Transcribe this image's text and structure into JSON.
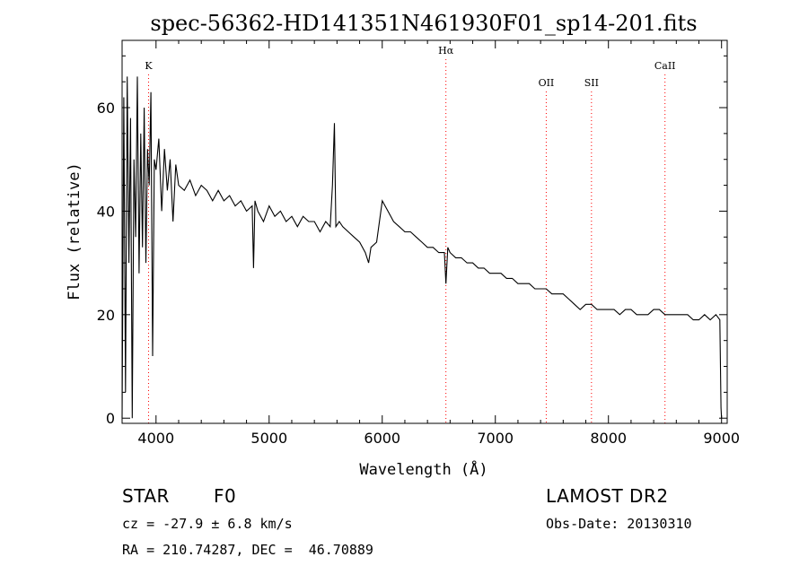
{
  "chart_data": {
    "type": "line",
    "title": "spec-56362-HD141351N461930F01_sp14-201.fits",
    "xlabel": "Wavelength (Å)",
    "ylabel": "Flux (relative)",
    "xlim": [
      3700,
      9050
    ],
    "ylim": [
      -1,
      73
    ],
    "xticks": [
      4000,
      5000,
      6000,
      7000,
      8000,
      9000
    ],
    "yticks": [
      0,
      20,
      40,
      60
    ],
    "grid": false,
    "series": [
      {
        "values_x": [
          3700,
          3715,
          3730,
          3745,
          3760,
          3775,
          3790,
          3805,
          3820,
          3835,
          3850,
          3865,
          3880,
          3895,
          3910,
          3925,
          3940,
          3955,
          3970,
          3985,
          4000,
          4025,
          4050,
          4075,
          4100,
          4125,
          4150,
          4175,
          4200,
          4250,
          4300,
          4350,
          4400,
          4450,
          4500,
          4550,
          4600,
          4650,
          4700,
          4750,
          4800,
          4850,
          4862,
          4875,
          4900,
          4950,
          5000,
          5050,
          5100,
          5150,
          5200,
          5250,
          5300,
          5350,
          5400,
          5450,
          5500,
          5540,
          5560,
          5577,
          5590,
          5620,
          5650,
          5700,
          5750,
          5800,
          5850,
          5880,
          5900,
          5950,
          6000,
          6050,
          6100,
          6150,
          6200,
          6250,
          6300,
          6350,
          6400,
          6450,
          6500,
          6550,
          6563,
          6580,
          6600,
          6650,
          6700,
          6750,
          6800,
          6850,
          6900,
          6950,
          7000,
          7050,
          7100,
          7150,
          7200,
          7250,
          7300,
          7350,
          7400,
          7450,
          7500,
          7550,
          7600,
          7650,
          7700,
          7750,
          7800,
          7850,
          7900,
          7950,
          8000,
          8050,
          8100,
          8150,
          8200,
          8250,
          8300,
          8350,
          8400,
          8450,
          8500,
          8550,
          8600,
          8650,
          8700,
          8750,
          8800,
          8850,
          8900,
          8950,
          8985,
          8995,
          9000
        ],
        "values_y": [
          0,
          62,
          5,
          66,
          30,
          58,
          0,
          50,
          35,
          66,
          28,
          55,
          33,
          60,
          30,
          52,
          45,
          63,
          12,
          50,
          48,
          54,
          40,
          52,
          44,
          50,
          38,
          49,
          45,
          44,
          46,
          43,
          45,
          44,
          42,
          44,
          42,
          43,
          41,
          42,
          40,
          41,
          29,
          42,
          40,
          38,
          41,
          39,
          40,
          38,
          39,
          37,
          39,
          38,
          38,
          36,
          38,
          37,
          45,
          57,
          37,
          38,
          37,
          36,
          35,
          34,
          32,
          30,
          33,
          34,
          42,
          40,
          38,
          37,
          36,
          36,
          35,
          34,
          33,
          33,
          32,
          32,
          26,
          33,
          32,
          31,
          31,
          30,
          30,
          29,
          29,
          28,
          28,
          28,
          27,
          27,
          26,
          26,
          26,
          25,
          25,
          25,
          24,
          24,
          24,
          23,
          22,
          21,
          22,
          22,
          21,
          21,
          21,
          21,
          20,
          21,
          21,
          20,
          20,
          20,
          21,
          21,
          20,
          20,
          20,
          20,
          20,
          19,
          19,
          20,
          19,
          20,
          19,
          2,
          0
        ],
        "color": "#000000"
      }
    ],
    "spectral_lines": [
      {
        "label": "K",
        "x": 3934,
        "color": "#ff0000"
      },
      {
        "label": "Hα",
        "x": 6563,
        "color": "#ff0000"
      },
      {
        "label": "OII",
        "x": 7450,
        "color": "#ff0000"
      },
      {
        "label": "SII",
        "x": 7850,
        "color": "#ff0000"
      },
      {
        "label": "CaII",
        "x": 8500,
        "color": "#ff0000"
      }
    ]
  },
  "info": {
    "object_class": "STAR",
    "subclass": "F0",
    "survey": "LAMOST DR2",
    "cz": "cz = -27.9 ± 6.8 km/s",
    "obs_date": "Obs-Date: 20130310",
    "coords": "RA = 210.74287, DEC =  46.70889"
  }
}
